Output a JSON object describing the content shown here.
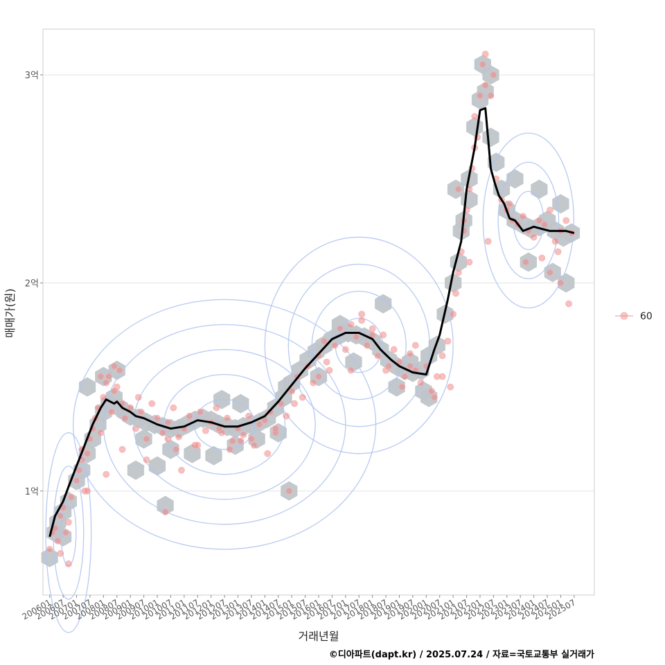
{
  "chart_data": {
    "type": "scatter",
    "title": "",
    "xlabel": "거래년월",
    "ylabel": "매매가(원)",
    "ylim": [
      0.5,
      3.22
    ],
    "y_ticks": [
      {
        "value": 1,
        "label": "1억"
      },
      {
        "value": 2,
        "label": "2억"
      },
      {
        "value": 3,
        "label": "3억"
      }
    ],
    "x_range": [
      2005.75,
      2026.25
    ],
    "x_ticks": [
      {
        "value": 2006.0,
        "label": "200601"
      },
      {
        "value": 2006.5,
        "label": "200607"
      },
      {
        "value": 2007.0,
        "label": "200701"
      },
      {
        "value": 2007.5,
        "label": "200707"
      },
      {
        "value": 2008.0,
        "label": "200801"
      },
      {
        "value": 2008.5,
        "label": "200807"
      },
      {
        "value": 2009.0,
        "label": "200901"
      },
      {
        "value": 2009.5,
        "label": "200907"
      },
      {
        "value": 2010.0,
        "label": "201001"
      },
      {
        "value": 2010.5,
        "label": "201007"
      },
      {
        "value": 2011.0,
        "label": "201101"
      },
      {
        "value": 2011.5,
        "label": "201107"
      },
      {
        "value": 2012.0,
        "label": "201201"
      },
      {
        "value": 2012.5,
        "label": "201207"
      },
      {
        "value": 2013.0,
        "label": "201301"
      },
      {
        "value": 2013.5,
        "label": "201307"
      },
      {
        "value": 2014.0,
        "label": "201401"
      },
      {
        "value": 2014.5,
        "label": "201407"
      },
      {
        "value": 2015.0,
        "label": "201501"
      },
      {
        "value": 2015.5,
        "label": "201507"
      },
      {
        "value": 2016.0,
        "label": "201601"
      },
      {
        "value": 2016.5,
        "label": "201607"
      },
      {
        "value": 2017.0,
        "label": "201701"
      },
      {
        "value": 2017.5,
        "label": "201707"
      },
      {
        "value": 2018.0,
        "label": "201801"
      },
      {
        "value": 2018.5,
        "label": "201807"
      },
      {
        "value": 2019.0,
        "label": "201901"
      },
      {
        "value": 2019.5,
        "label": "201907"
      },
      {
        "value": 2020.0,
        "label": "202001"
      },
      {
        "value": 2020.5,
        "label": "202007"
      },
      {
        "value": 2021.0,
        "label": "202101"
      },
      {
        "value": 2021.5,
        "label": "202107"
      },
      {
        "value": 2022.0,
        "label": "202201"
      },
      {
        "value": 2022.5,
        "label": "202207"
      },
      {
        "value": 2023.0,
        "label": "202301"
      },
      {
        "value": 2023.5,
        "label": "202307"
      },
      {
        "value": 2024.0,
        "label": "202401"
      },
      {
        "value": 2024.5,
        "label": "202407"
      },
      {
        "value": 2025.0,
        "label": "202501"
      },
      {
        "value": 2025.5,
        "label": "202507"
      }
    ],
    "legend": {
      "position": "right",
      "entries": [
        {
          "label": "60",
          "color": "#f08080"
        }
      ]
    },
    "series": [
      {
        "name": "smoothed trend",
        "type": "line",
        "color": "#000000",
        "x": [
          2006.0,
          2006.2,
          2006.5,
          2006.7,
          2007.0,
          2007.3,
          2007.6,
          2007.9,
          2008.1,
          2008.4,
          2008.5,
          2008.7,
          2009.0,
          2009.2,
          2009.5,
          2010.0,
          2010.5,
          2011.0,
          2011.5,
          2012.0,
          2012.5,
          2013.0,
          2013.5,
          2014.0,
          2014.5,
          2015.0,
          2015.5,
          2016.0,
          2016.5,
          2017.0,
          2017.5,
          2018.0,
          2018.3,
          2018.7,
          2019.0,
          2019.5,
          2020.0,
          2020.3,
          2020.5,
          2020.8,
          2021.0,
          2021.3,
          2021.5,
          2021.8,
          2022.0,
          2022.2,
          2022.4,
          2022.55,
          2022.7,
          2022.9,
          2023.1,
          2023.3,
          2023.6,
          2024.0,
          2024.3,
          2024.6,
          2024.9,
          2025.2,
          2025.5
        ],
        "y": [
          0.78,
          0.88,
          0.95,
          1.02,
          1.12,
          1.22,
          1.32,
          1.4,
          1.44,
          1.42,
          1.43,
          1.4,
          1.38,
          1.36,
          1.35,
          1.32,
          1.3,
          1.31,
          1.34,
          1.33,
          1.31,
          1.31,
          1.33,
          1.36,
          1.43,
          1.51,
          1.59,
          1.66,
          1.73,
          1.76,
          1.76,
          1.73,
          1.68,
          1.63,
          1.6,
          1.57,
          1.56,
          1.68,
          1.75,
          1.92,
          2.05,
          2.2,
          2.45,
          2.65,
          2.83,
          2.84,
          2.55,
          2.48,
          2.42,
          2.38,
          2.31,
          2.3,
          2.25,
          2.27,
          2.26,
          2.25,
          2.25,
          2.25,
          2.24
        ]
      },
      {
        "name": "hexbin density",
        "type": "hexbin",
        "color": "#bfc5c9",
        "x": [
          2006.0,
          2006.2,
          2006.3,
          2006.5,
          2006.7,
          2007.0,
          2007.2,
          2007.4,
          2007.6,
          2007.8,
          2008.0,
          2008.2,
          2008.4,
          2008.6,
          2008.8,
          2009.0,
          2009.3,
          2009.6,
          2009.9,
          2010.2,
          2010.5,
          2010.8,
          2011.1,
          2011.4,
          2011.7,
          2012.0,
          2012.3,
          2012.6,
          2012.9,
          2013.2,
          2013.5,
          2013.8,
          2014.1,
          2014.4,
          2014.7,
          2015.0,
          2015.3,
          2015.6,
          2015.9,
          2016.2,
          2016.5,
          2016.8,
          2017.1,
          2017.4,
          2017.7,
          2018.0,
          2018.3,
          2018.6,
          2018.9,
          2019.2,
          2019.5,
          2019.8,
          2020.1,
          2020.4,
          2020.7,
          2021.0,
          2021.2,
          2021.4,
          2021.6,
          2021.8,
          2022.0,
          2022.2,
          2022.4,
          2022.6,
          2022.8,
          2023.0,
          2023.3,
          2023.6,
          2023.9,
          2024.2,
          2024.5,
          2024.8,
          2025.1,
          2025.4,
          2007.4,
          2008.0,
          2008.5,
          2009.5,
          2010.5,
          2011.3,
          2012.1,
          2012.9,
          2013.7,
          2014.5,
          2016.0,
          2017.3,
          2018.4,
          2019.4,
          2020.1,
          2021.1,
          2021.6,
          2022.1,
          2023.3,
          2024.2,
          2025.0,
          2006.5,
          2009.2,
          2010.0,
          2012.4,
          2013.1,
          2014.8,
          2016.8,
          2018.9,
          2019.9,
          2021.3,
          2022.4,
          2023.8,
          2024.7,
          2025.2,
          2010.3,
          2014.9
        ],
        "y": [
          0.68,
          0.8,
          0.85,
          0.9,
          0.95,
          1.05,
          1.1,
          1.18,
          1.25,
          1.32,
          1.38,
          1.42,
          1.45,
          1.4,
          1.38,
          1.36,
          1.35,
          1.33,
          1.32,
          1.31,
          1.3,
          1.3,
          1.32,
          1.34,
          1.35,
          1.34,
          1.32,
          1.31,
          1.3,
          1.31,
          1.32,
          1.33,
          1.35,
          1.4,
          1.45,
          1.52,
          1.58,
          1.63,
          1.67,
          1.7,
          1.73,
          1.75,
          1.76,
          1.75,
          1.74,
          1.72,
          1.68,
          1.63,
          1.6,
          1.58,
          1.57,
          1.58,
          1.65,
          1.7,
          1.85,
          2.0,
          2.1,
          2.3,
          2.5,
          2.75,
          2.88,
          2.92,
          2.7,
          2.58,
          2.45,
          2.35,
          2.3,
          2.28,
          2.26,
          2.27,
          2.3,
          2.25,
          2.22,
          2.24,
          1.5,
          1.55,
          1.58,
          1.25,
          1.2,
          1.18,
          1.17,
          1.22,
          1.25,
          1.28,
          1.55,
          1.62,
          1.9,
          1.62,
          1.45,
          2.45,
          2.4,
          3.05,
          2.5,
          2.45,
          2.38,
          0.78,
          1.1,
          1.12,
          1.44,
          1.42,
          1.5,
          1.8,
          1.5,
          1.48,
          2.25,
          3.0,
          2.1,
          2.05,
          2.0,
          0.93,
          1.0
        ]
      },
      {
        "name": "60",
        "type": "scatter",
        "color": "#f08080",
        "x": [
          2006.0,
          2006.1,
          2006.2,
          2006.3,
          2006.4,
          2006.5,
          2006.6,
          2006.7,
          2006.8,
          2007.0,
          2007.1,
          2007.2,
          2007.3,
          2007.4,
          2007.5,
          2007.6,
          2007.7,
          2007.8,
          2007.9,
          2008.0,
          2008.1,
          2008.2,
          2008.3,
          2008.4,
          2008.5,
          2008.6,
          2008.7,
          2008.8,
          2009.0,
          2009.2,
          2009.4,
          2009.6,
          2009.8,
          2010.0,
          2010.2,
          2010.4,
          2010.6,
          2010.8,
          2011.0,
          2011.2,
          2011.4,
          2011.6,
          2011.8,
          2012.0,
          2012.2,
          2012.4,
          2012.6,
          2012.8,
          2013.0,
          2013.2,
          2013.4,
          2013.6,
          2013.8,
          2014.0,
          2014.2,
          2014.4,
          2014.6,
          2014.8,
          2015.0,
          2015.2,
          2015.4,
          2015.6,
          2015.8,
          2016.0,
          2016.2,
          2016.4,
          2016.6,
          2016.8,
          2017.0,
          2017.2,
          2017.4,
          2017.6,
          2017.8,
          2018.0,
          2018.2,
          2018.4,
          2018.6,
          2018.8,
          2019.0,
          2019.2,
          2019.4,
          2019.6,
          2019.8,
          2020.0,
          2020.2,
          2020.4,
          2020.6,
          2020.8,
          2021.0,
          2021.1,
          2021.2,
          2021.3,
          2021.4,
          2021.5,
          2021.6,
          2021.7,
          2021.8,
          2021.9,
          2022.0,
          2022.1,
          2022.2,
          2022.4,
          2022.6,
          2022.8,
          2023.0,
          2023.2,
          2023.4,
          2023.6,
          2023.8,
          2024.0,
          2024.2,
          2024.4,
          2024.6,
          2024.8,
          2025.0,
          2025.2,
          2025.4,
          2006.4,
          2007.2,
          2008.4,
          2008.7,
          2009.3,
          2010.4,
          2010.7,
          2012.3,
          2013.5,
          2014.4,
          2016.3,
          2017.6,
          2018.5,
          2019.6,
          2020.3,
          2021.2,
          2021.6,
          2022.2,
          2022.5,
          2023.7,
          2024.6,
          2025.0,
          2007.4,
          2007.9,
          2008.1,
          2011.5,
          2013.1,
          2015.1,
          2017.2,
          2019.1,
          2020.9,
          2022.3,
          2023.1,
          2024.3,
          2025.3,
          2006.7,
          2009.6,
          2010.9,
          2012.7,
          2014.1,
          2016.0,
          2018.0,
          2019.4,
          2020.6,
          2021.4,
          2021.8,
          2024.9,
          2010.3,
          2014.9
        ],
        "y": [
          0.72,
          0.8,
          0.82,
          0.76,
          0.88,
          0.92,
          0.8,
          0.85,
          0.97,
          1.05,
          1.1,
          1.15,
          1.0,
          1.18,
          1.25,
          1.3,
          1.35,
          1.4,
          1.28,
          1.45,
          1.52,
          1.55,
          1.38,
          1.48,
          1.5,
          1.58,
          1.42,
          1.35,
          1.4,
          1.3,
          1.38,
          1.25,
          1.42,
          1.35,
          1.28,
          1.33,
          1.4,
          1.26,
          1.3,
          1.36,
          1.22,
          1.38,
          1.29,
          1.33,
          1.4,
          1.28,
          1.35,
          1.24,
          1.3,
          1.27,
          1.36,
          1.22,
          1.32,
          1.34,
          1.38,
          1.28,
          1.42,
          1.36,
          1.48,
          1.55,
          1.45,
          1.6,
          1.52,
          1.65,
          1.72,
          1.58,
          1.7,
          1.78,
          1.68,
          1.8,
          1.74,
          1.82,
          1.7,
          1.78,
          1.65,
          1.75,
          1.6,
          1.68,
          1.62,
          1.55,
          1.66,
          1.58,
          1.52,
          1.6,
          1.48,
          1.55,
          1.65,
          1.72,
          1.85,
          1.95,
          2.05,
          2.15,
          2.25,
          2.35,
          2.45,
          2.55,
          2.65,
          2.7,
          2.9,
          3.05,
          2.95,
          2.9,
          2.5,
          2.4,
          2.35,
          2.3,
          2.28,
          2.32,
          2.25,
          2.22,
          2.3,
          2.28,
          2.35,
          2.2,
          2.25,
          2.3,
          2.24,
          0.7,
          1.2,
          1.6,
          1.2,
          1.45,
          1.25,
          1.2,
          1.3,
          1.25,
          1.3,
          1.62,
          1.85,
          1.58,
          1.7,
          1.45,
          2.45,
          2.1,
          3.1,
          3.0,
          2.1,
          2.05,
          2.0,
          1.0,
          1.55,
          1.08,
          1.22,
          1.24,
          1.42,
          1.58,
          1.5,
          1.5,
          2.2,
          2.38,
          2.12,
          1.9,
          0.65,
          1.15,
          1.1,
          1.2,
          1.18,
          1.55,
          1.75,
          1.6,
          1.55,
          2.3,
          2.8,
          2.15,
          0.9,
          1.0
        ]
      }
    ],
    "density_contours": {
      "color": "#b0c4f0",
      "centers": [
        {
          "x": 2012.5,
          "y": 1.32,
          "sx": 3.6,
          "sy": 0.12,
          "levels": [
            1.0,
            2.0,
            3.0,
            4.0,
            5.0
          ]
        },
        {
          "x": 2017.5,
          "y": 1.7,
          "sx": 2.8,
          "sy": 0.13,
          "levels": [
            1.0,
            2.0,
            3.0,
            4.0
          ]
        },
        {
          "x": 2006.7,
          "y": 0.8,
          "sx": 0.9,
          "sy": 0.16,
          "levels": [
            1.0,
            2.0,
            3.0
          ]
        },
        {
          "x": 2023.8,
          "y": 2.3,
          "sx": 1.8,
          "sy": 0.14,
          "levels": [
            1.0,
            2.0,
            3.0
          ]
        }
      ]
    }
  },
  "caption": "©디아파트(dapt.kr) / 2025.07.24 / 자료=국토교통부 실거래가"
}
